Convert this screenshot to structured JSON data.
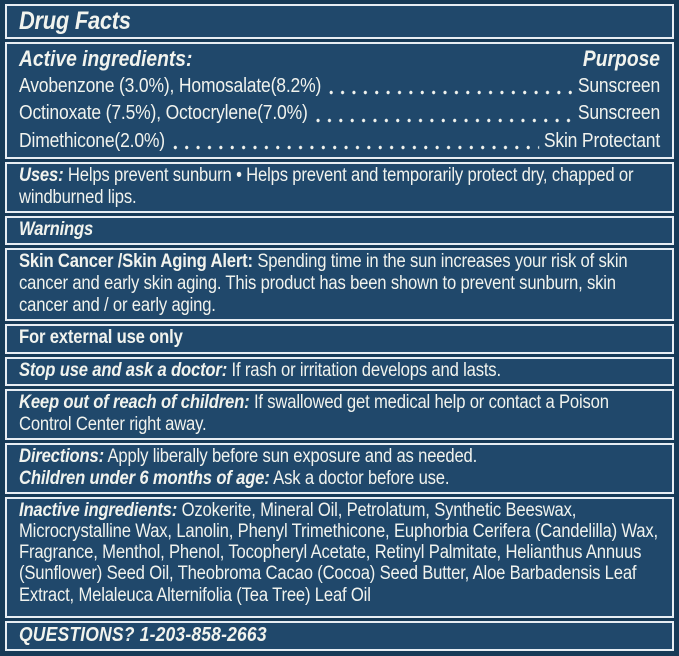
{
  "colors": {
    "background": "#173a57",
    "panel": "#20486b",
    "divider": "#e7edf3",
    "text": "#f1f3ee"
  },
  "drug_facts": {
    "title": "Drug Facts",
    "active_ingredients": {
      "heading": "Active ingredients:",
      "purpose_label": "Purpose",
      "rows": [
        {
          "name": "Avobenzone (3.0%), Homosalate(8.2%)",
          "purpose": "Sunscreen"
        },
        {
          "name": "Octinoxate (7.5%), Octocrylene(7.0%)",
          "purpose": "Sunscreen"
        },
        {
          "name": "Dimethicone(2.0%)",
          "purpose": "Skin Protectant"
        }
      ]
    },
    "uses": {
      "label": "Uses:",
      "text": "Helps prevent sunburn • Helps prevent and temporarily protect dry, chapped or windburned lips."
    },
    "warnings": {
      "heading": "Warnings",
      "skin_alert": {
        "label": "Skin Cancer /Skin Aging Alert:",
        "text": "Spending time in the sun increases your risk of skin cancer and early skin aging. This product has been shown to prevent sunburn, skin cancer and / or early aging."
      },
      "external_use": "For external use only",
      "stop_use": {
        "label": "Stop use and ask a doctor:",
        "text": "If rash or irritation develops and lasts."
      },
      "keep_out": {
        "label": "Keep out of reach of children:",
        "text": "If swallowed get medical help or contact a Poison Control Center right away."
      }
    },
    "directions": {
      "label": "Directions:",
      "text": "Apply liberally before sun exposure and as needed."
    },
    "children_note": {
      "label": "Children under 6 months of age:",
      "text": "Ask a doctor before use."
    },
    "inactive_ingredients": {
      "label": "Inactive ingredients:",
      "text": "Ozokerite, Mineral Oil, Petrolatum, Synthetic Beeswax, Microcrystalline Wax, Lanolin, Phenyl Trimethicone, Euphorbia Cerifera (Candelilla) Wax, Fragrance, Menthol, Phenol, Tocopheryl Acetate, Retinyl Palmitate, Helianthus Annuus (Sunflower) Seed Oil, Theobroma Cacao (Cocoa) Seed Butter, Aloe Barbadensis Leaf Extract, Melaleuca Alternifolia (Tea Tree) Leaf Oil"
    },
    "questions": {
      "label": "QUESTIONS?",
      "phone": "1-203-858-2663"
    }
  }
}
